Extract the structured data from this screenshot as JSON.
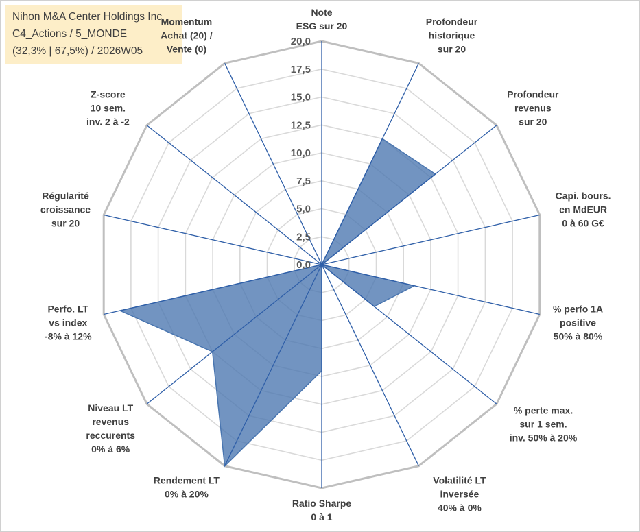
{
  "header": {
    "line1": "Nihon M&A Center Holdings Inc",
    "line2": "C4_Actions / 5_MONDE",
    "line3": "(32,3% | 67,5%) / 2026W05"
  },
  "colors": {
    "fill": "#4a76b0",
    "axis": "#2f5fa8",
    "grid_inner": "#d9d9d9",
    "grid_outer": "#bfbfbf",
    "background_box": "#fdeec8"
  },
  "chart_data": {
    "type": "radar",
    "rmin": 0,
    "rmax": 20,
    "tick_step": 2.5,
    "tick_labels": [
      "0,0",
      "2,5",
      "5,0",
      "7,5",
      "10,0",
      "12,5",
      "15,0",
      "17,5",
      "20,0"
    ],
    "axes": [
      {
        "label": [
          "Note",
          "ESG sur 20"
        ]
      },
      {
        "label": [
          "Profondeur",
          "historique",
          "sur 20"
        ]
      },
      {
        "label": [
          "Profondeur",
          "revenus",
          "sur 20"
        ]
      },
      {
        "label": [
          "Capi. bours.",
          "en MdEUR",
          "0 à 60 G€"
        ]
      },
      {
        "label": [
          "% perfo 1A",
          "positive",
          "50% à 80%"
        ]
      },
      {
        "label": [
          "% perte max.",
          "sur 1 sem.",
          "inv. 50% à 20%"
        ]
      },
      {
        "label": [
          "Volatilité LT",
          "inversée",
          "40% à 0%"
        ]
      },
      {
        "label": [
          "Ratio Sharpe",
          "0 à 1"
        ]
      },
      {
        "label": [
          "Rendement LT",
          "0% à 20%"
        ]
      },
      {
        "label": [
          "Niveau LT",
          "revenus",
          "reccurents",
          "0% à 6%"
        ]
      },
      {
        "label": [
          "Perfo. LT",
          "vs index",
          "-8% à 12%"
        ]
      },
      {
        "label": [
          "Régularité",
          "croissance",
          "sur 20"
        ]
      },
      {
        "label": [
          "Z-score",
          "10 sem.",
          "inv. 2 à -2"
        ]
      },
      {
        "label": [
          "Momentum",
          "Achat (20) /",
          "Vente (0)"
        ]
      }
    ],
    "series": [
      {
        "values": [
          0,
          12.5,
          13.0,
          0,
          8.5,
          6.0,
          0,
          9.5,
          20.0,
          12.5,
          18.5,
          0,
          0,
          0
        ]
      }
    ]
  }
}
